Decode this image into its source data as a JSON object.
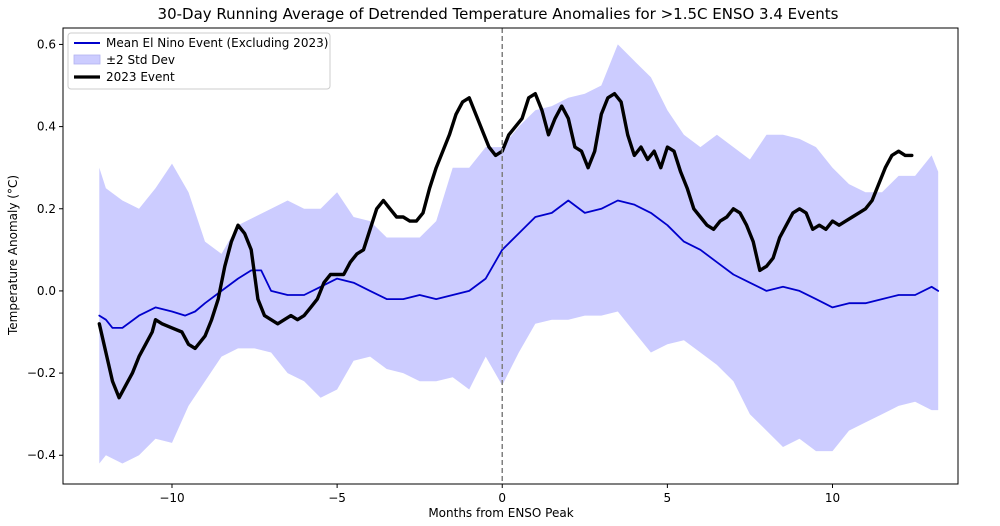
{
  "chart_data": {
    "type": "line",
    "title": "30-Day Running Average of Detrended Temperature Anomalies for >1.5C ENSO 3.4 Events",
    "xlabel": "Months from ENSO Peak",
    "ylabel": "Temperature Anomaly (°C)",
    "xlim": [
      -13.3,
      13.8
    ],
    "ylim": [
      -0.47,
      0.64
    ],
    "xticks": [
      -10,
      -5,
      0,
      5,
      10
    ],
    "xtick_labels": [
      "−10",
      "−5",
      "0",
      "5",
      "10"
    ],
    "yticks": [
      -0.4,
      -0.2,
      0.0,
      0.2,
      0.4,
      0.6
    ],
    "ytick_labels": [
      "−0.4",
      "−0.2",
      "0.0",
      "0.2",
      "0.4",
      "0.6"
    ],
    "grid": false,
    "legend_position": "top-left",
    "vline": {
      "x": 0,
      "style": "dashed",
      "color": "#808080"
    },
    "series": [
      {
        "name": "Mean El Nino Event (Excluding 2023)",
        "kind": "line",
        "color": "#0000cc",
        "x": [
          -12.2,
          -12.0,
          -11.8,
          -11.5,
          -11.0,
          -10.5,
          -10.0,
          -9.6,
          -9.3,
          -9.0,
          -8.5,
          -8.0,
          -7.6,
          -7.3,
          -7.0,
          -6.5,
          -6.0,
          -5.5,
          -5.0,
          -4.5,
          -4.0,
          -3.5,
          -3.0,
          -2.5,
          -2.0,
          -1.5,
          -1.0,
          -0.5,
          0.0,
          0.5,
          1.0,
          1.5,
          2.0,
          2.5,
          3.0,
          3.5,
          4.0,
          4.5,
          5.0,
          5.5,
          6.0,
          6.5,
          7.0,
          7.5,
          8.0,
          8.5,
          9.0,
          9.5,
          10.0,
          10.5,
          11.0,
          11.5,
          12.0,
          12.5,
          13.0,
          13.2
        ],
        "y": [
          -0.06,
          -0.07,
          -0.09,
          -0.09,
          -0.06,
          -0.04,
          -0.05,
          -0.06,
          -0.05,
          -0.03,
          0.0,
          0.03,
          0.05,
          0.05,
          0.0,
          -0.01,
          -0.01,
          0.01,
          0.03,
          0.02,
          0.0,
          -0.02,
          -0.02,
          -0.01,
          -0.02,
          -0.01,
          0.0,
          0.03,
          0.1,
          0.14,
          0.18,
          0.19,
          0.22,
          0.19,
          0.2,
          0.22,
          0.21,
          0.19,
          0.16,
          0.12,
          0.1,
          0.07,
          0.04,
          0.02,
          0.0,
          0.01,
          0.0,
          -0.02,
          -0.04,
          -0.03,
          -0.03,
          -0.02,
          -0.01,
          -0.01,
          0.01,
          0.0
        ]
      },
      {
        "name": "±2 Std Dev",
        "kind": "band",
        "color": "#ccccff",
        "x": [
          -12.2,
          -12.0,
          -11.5,
          -11.0,
          -10.5,
          -10.0,
          -9.5,
          -9.0,
          -8.5,
          -8.0,
          -7.5,
          -7.0,
          -6.5,
          -6.0,
          -5.5,
          -5.0,
          -4.5,
          -4.0,
          -3.5,
          -3.0,
          -2.5,
          -2.0,
          -1.5,
          -1.0,
          -0.5,
          0.0,
          0.5,
          1.0,
          1.5,
          2.0,
          2.5,
          3.0,
          3.5,
          4.0,
          4.5,
          5.0,
          5.5,
          6.0,
          6.5,
          7.0,
          7.5,
          8.0,
          8.5,
          9.0,
          9.5,
          10.0,
          10.5,
          11.0,
          11.5,
          12.0,
          12.5,
          13.0,
          13.2
        ],
        "lower": [
          -0.42,
          -0.4,
          -0.42,
          -0.4,
          -0.36,
          -0.37,
          -0.28,
          -0.22,
          -0.16,
          -0.14,
          -0.14,
          -0.15,
          -0.2,
          -0.22,
          -0.26,
          -0.24,
          -0.17,
          -0.16,
          -0.19,
          -0.2,
          -0.22,
          -0.22,
          -0.21,
          -0.24,
          -0.16,
          -0.23,
          -0.15,
          -0.08,
          -0.07,
          -0.07,
          -0.06,
          -0.06,
          -0.05,
          -0.1,
          -0.15,
          -0.13,
          -0.12,
          -0.15,
          -0.18,
          -0.22,
          -0.3,
          -0.34,
          -0.38,
          -0.36,
          -0.39,
          -0.39,
          -0.34,
          -0.32,
          -0.3,
          -0.28,
          -0.27,
          -0.29,
          -0.29
        ],
        "upper": [
          0.3,
          0.25,
          0.22,
          0.2,
          0.25,
          0.31,
          0.24,
          0.12,
          0.09,
          0.16,
          0.18,
          0.2,
          0.22,
          0.2,
          0.2,
          0.24,
          0.18,
          0.17,
          0.13,
          0.13,
          0.13,
          0.17,
          0.3,
          0.3,
          0.35,
          0.35,
          0.4,
          0.44,
          0.45,
          0.47,
          0.48,
          0.5,
          0.6,
          0.56,
          0.52,
          0.44,
          0.38,
          0.35,
          0.38,
          0.35,
          0.32,
          0.38,
          0.38,
          0.37,
          0.35,
          0.3,
          0.26,
          0.24,
          0.24,
          0.28,
          0.28,
          0.33,
          0.29
        ]
      },
      {
        "name": "2023 Event",
        "kind": "line",
        "color": "#000000",
        "x": [
          -12.2,
          -12.0,
          -11.8,
          -11.6,
          -11.4,
          -11.2,
          -11.0,
          -10.8,
          -10.6,
          -10.5,
          -10.3,
          -10.0,
          -9.7,
          -9.5,
          -9.3,
          -9.0,
          -8.8,
          -8.6,
          -8.4,
          -8.2,
          -8.0,
          -7.8,
          -7.6,
          -7.4,
          -7.2,
          -7.0,
          -6.8,
          -6.6,
          -6.4,
          -6.2,
          -6.0,
          -5.8,
          -5.6,
          -5.4,
          -5.2,
          -5.0,
          -4.8,
          -4.6,
          -4.4,
          -4.2,
          -4.0,
          -3.8,
          -3.6,
          -3.4,
          -3.2,
          -3.0,
          -2.8,
          -2.6,
          -2.4,
          -2.2,
          -2.0,
          -1.8,
          -1.6,
          -1.4,
          -1.2,
          -1.0,
          -0.8,
          -0.6,
          -0.4,
          -0.2,
          0.0,
          0.2,
          0.4,
          0.6,
          0.8,
          1.0,
          1.2,
          1.4,
          1.6,
          1.8,
          2.0,
          2.2,
          2.4,
          2.6,
          2.8,
          3.0,
          3.2,
          3.4,
          3.6,
          3.8,
          4.0,
          4.2,
          4.4,
          4.6,
          4.8,
          5.0,
          5.2,
          5.4,
          5.6,
          5.8,
          6.0,
          6.2,
          6.4,
          6.6,
          6.8,
          7.0,
          7.2,
          7.4,
          7.6,
          7.8,
          8.0,
          8.2,
          8.4,
          8.6,
          8.8,
          9.0,
          9.2,
          9.4,
          9.6,
          9.8,
          10.0,
          10.2,
          10.4,
          10.6,
          10.8,
          11.0,
          11.2,
          11.4,
          11.6,
          11.8,
          12.0,
          12.2,
          12.4
        ],
        "y": [
          -0.08,
          -0.15,
          -0.22,
          -0.26,
          -0.23,
          -0.2,
          -0.16,
          -0.13,
          -0.1,
          -0.07,
          -0.08,
          -0.09,
          -0.1,
          -0.13,
          -0.14,
          -0.11,
          -0.07,
          -0.02,
          0.06,
          0.12,
          0.16,
          0.14,
          0.1,
          -0.02,
          -0.06,
          -0.07,
          -0.08,
          -0.07,
          -0.06,
          -0.07,
          -0.06,
          -0.04,
          -0.02,
          0.02,
          0.04,
          0.04,
          0.04,
          0.07,
          0.09,
          0.1,
          0.15,
          0.2,
          0.22,
          0.2,
          0.18,
          0.18,
          0.17,
          0.17,
          0.19,
          0.25,
          0.3,
          0.34,
          0.38,
          0.43,
          0.46,
          0.47,
          0.43,
          0.39,
          0.35,
          0.33,
          0.34,
          0.38,
          0.4,
          0.42,
          0.47,
          0.48,
          0.44,
          0.38,
          0.42,
          0.45,
          0.42,
          0.35,
          0.34,
          0.3,
          0.34,
          0.43,
          0.47,
          0.48,
          0.46,
          0.38,
          0.33,
          0.35,
          0.32,
          0.34,
          0.3,
          0.35,
          0.34,
          0.29,
          0.25,
          0.2,
          0.18,
          0.16,
          0.15,
          0.17,
          0.18,
          0.2,
          0.19,
          0.16,
          0.12,
          0.05,
          0.06,
          0.08,
          0.13,
          0.16,
          0.19,
          0.2,
          0.19,
          0.15,
          0.16,
          0.15,
          0.17,
          0.16,
          0.17,
          0.18,
          0.19,
          0.2,
          0.22,
          0.26,
          0.3,
          0.33,
          0.34,
          0.33,
          0.33
        ]
      }
    ]
  }
}
